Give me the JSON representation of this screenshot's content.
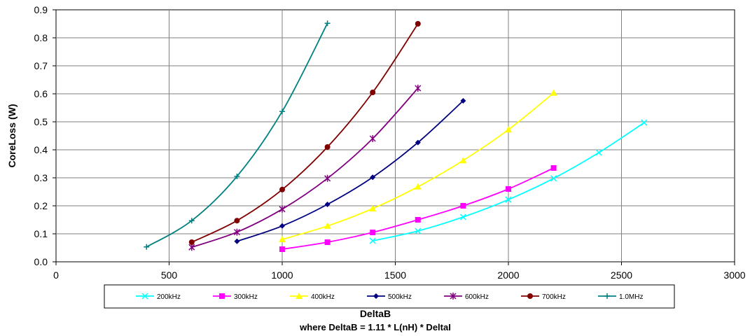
{
  "chart_data": {
    "type": "line",
    "title": "",
    "xlabel": "DeltaB",
    "xlabel_sub": "where DeltaB = 1.11 * L(nH) * DeltaI",
    "ylabel": "CoreLoss (W)",
    "xlim": [
      0,
      3000
    ],
    "ylim": [
      0,
      0.9
    ],
    "x_ticks": [
      "0",
      "500",
      "1000",
      "1500",
      "2000",
      "2500",
      "3000"
    ],
    "y_ticks": [
      "0.0",
      "0.1",
      "0.2",
      "0.3",
      "0.4",
      "0.5",
      "0.6",
      "0.7",
      "0.8",
      "0.9"
    ],
    "grid": true,
    "legend_position": "bottom",
    "series": [
      {
        "name": "200kHz",
        "color": "#00FFFF",
        "marker": "x",
        "x": [
          1400,
          1600,
          1800,
          2000,
          2200,
          2400,
          2600
        ],
        "y": [
          0.075,
          0.11,
          0.16,
          0.222,
          0.298,
          0.39,
          0.497
        ]
      },
      {
        "name": "300kHz",
        "color": "#FF00FF",
        "marker": "square",
        "x": [
          1000,
          1200,
          1400,
          1600,
          1800,
          2000,
          2200
        ],
        "y": [
          0.045,
          0.07,
          0.105,
          0.15,
          0.2,
          0.26,
          0.335
        ]
      },
      {
        "name": "400kHz",
        "color": "#FFFF00",
        "marker": "triangle",
        "x": [
          1000,
          1200,
          1400,
          1600,
          1800,
          2000,
          2200
        ],
        "y": [
          0.08,
          0.128,
          0.19,
          0.268,
          0.362,
          0.472,
          0.603
        ]
      },
      {
        "name": "500kHz",
        "color": "#000080",
        "marker": "diamond",
        "x": [
          800,
          1000,
          1200,
          1400,
          1600,
          1800
        ],
        "y": [
          0.073,
          0.128,
          0.205,
          0.302,
          0.426,
          0.575
        ]
      },
      {
        "name": "600kHz",
        "color": "#800080",
        "marker": "star",
        "x": [
          600,
          800,
          1000,
          1200,
          1400,
          1600
        ],
        "y": [
          0.052,
          0.106,
          0.188,
          0.298,
          0.44,
          0.62
        ]
      },
      {
        "name": "700kHz",
        "color": "#800000",
        "marker": "circle",
        "x": [
          600,
          800,
          1000,
          1200,
          1400,
          1600
        ],
        "y": [
          0.07,
          0.147,
          0.258,
          0.41,
          0.605,
          0.85
        ]
      },
      {
        "name": "1.0MHz",
        "color": "#008080",
        "marker": "plus",
        "x": [
          400,
          600,
          800,
          1000,
          1200
        ],
        "y": [
          0.053,
          0.147,
          0.305,
          0.537,
          0.852
        ]
      }
    ]
  }
}
